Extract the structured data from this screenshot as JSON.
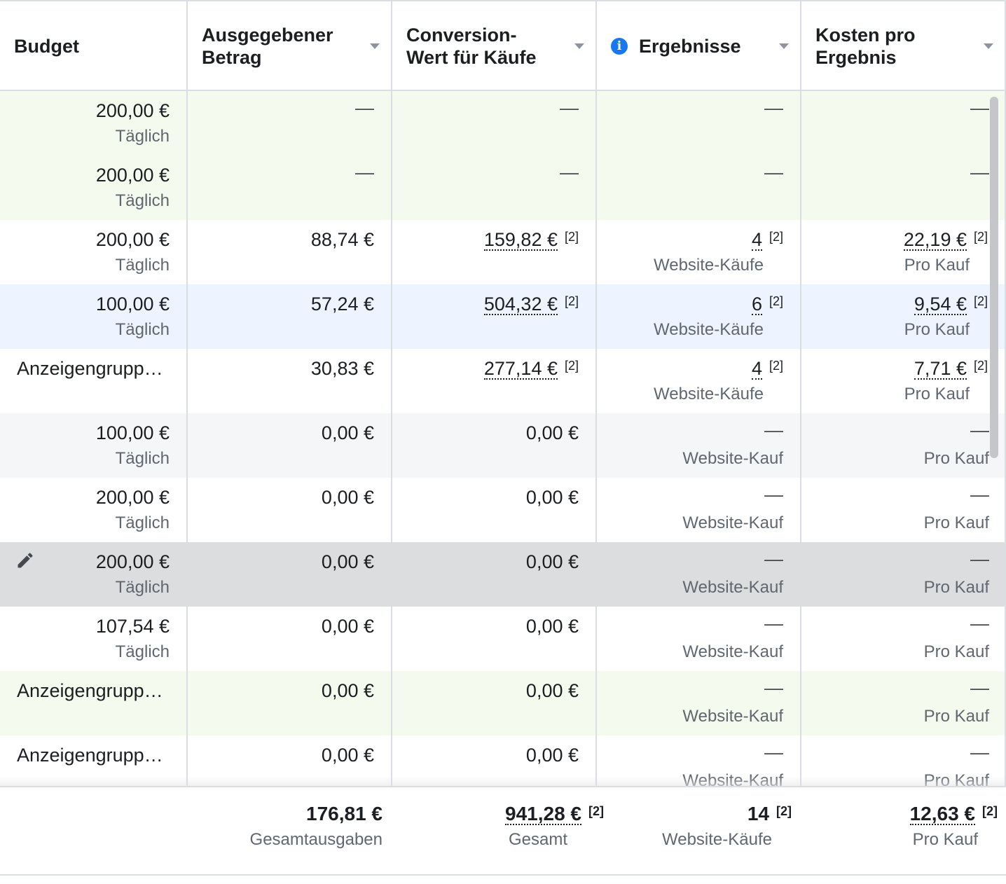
{
  "columns": {
    "budget": "Budget",
    "spent": "Ausgegebener Betrag",
    "conversion": "Conversion-Wert für Käufe",
    "results": "Ergebnisse",
    "cost": "Kosten pro Ergebnis"
  },
  "columns_lines": {
    "spent_1": "Ausgegebener",
    "spent_2": "Betrag",
    "conversion_1": "Conversion-",
    "conversion_2": "Wert für Käufe",
    "cost_1": "Kosten pro",
    "cost_2": "Ergebnis"
  },
  "dash": "—",
  "footnote": "[2]",
  "rows": [
    {
      "budget": "200,00 €",
      "budget_sub": "Täglich",
      "spent": "",
      "conv": "",
      "result": "",
      "result_sub": "",
      "cost": "",
      "cost_sub": "",
      "bg": "#f4fbee"
    },
    {
      "budget": "200,00 €",
      "budget_sub": "Täglich",
      "spent": "",
      "conv": "",
      "result": "",
      "result_sub": "",
      "cost": "",
      "cost_sub": "",
      "bg": "#f4fbee"
    },
    {
      "budget": "200,00 €",
      "budget_sub": "Täglich",
      "spent": "88,74 €",
      "conv": "159,82 €",
      "result": "4",
      "result_sub": "Website-Käufe",
      "cost": "22,19 €",
      "cost_sub": "Pro Kauf",
      "bg": "#ffffff"
    },
    {
      "budget": "100,00 €",
      "budget_sub": "Täglich",
      "spent": "57,24 €",
      "conv": "504,32 €",
      "result": "6",
      "result_sub": "Website-Käufe",
      "cost": "9,54 €",
      "cost_sub": "Pro Kauf",
      "bg": "#edf4ff"
    },
    {
      "name": "Anzeigengrupp…",
      "spent": "30,83 €",
      "conv": "277,14 €",
      "result": "4",
      "result_sub": "Website-Käufe",
      "cost": "7,71 €",
      "cost_sub": "Pro Kauf",
      "bg": "#ffffff"
    },
    {
      "budget": "100,00 €",
      "budget_sub": "Täglich",
      "spent": "0,00 €",
      "conv": "0,00 €",
      "result_sub": "Website-Kauf",
      "cost_sub": "Pro Kauf",
      "bg": "#f5f6f7"
    },
    {
      "budget": "200,00 €",
      "budget_sub": "Täglich",
      "spent": "0,00 €",
      "conv": "0,00 €",
      "result_sub": "Website-Kauf",
      "cost_sub": "Pro Kauf",
      "bg": "#ffffff"
    },
    {
      "budget": "200,00 €",
      "budget_sub": "Täglich",
      "spent": "0,00 €",
      "conv": "0,00 €",
      "result_sub": "Website-Kauf",
      "cost_sub": "Pro Kauf",
      "bg": "#dcdddf"
    },
    {
      "budget": "107,54 €",
      "budget_sub": "Täglich",
      "spent": "0,00 €",
      "conv": "0,00 €",
      "result_sub": "Website-Kauf",
      "cost_sub": "Pro Kauf",
      "bg": "#ffffff"
    },
    {
      "name": "Anzeigengrupp…",
      "spent": "0,00 €",
      "conv": "0,00 €",
      "result_sub": "Website-Kauf",
      "cost_sub": "Pro Kauf",
      "bg": "#f4fbee"
    },
    {
      "name": "Anzeigengrupp…",
      "spent": "0,00 €",
      "conv": "0,00 €",
      "result_sub": "Website-Kauf",
      "cost_sub": "Pro Kauf",
      "bg": "#ffffff"
    }
  ],
  "footer": {
    "spent": "176,81 €",
    "spent_sub": "Gesamtausgaben",
    "conv": "941,28 €",
    "conv_sub": "Gesamt",
    "result": "14",
    "result_sub": "Website-Käufe",
    "cost": "12,63 €",
    "cost_sub": "Pro Kauf"
  },
  "icons": {
    "info": "info-icon",
    "edit": "pencil-icon"
  }
}
